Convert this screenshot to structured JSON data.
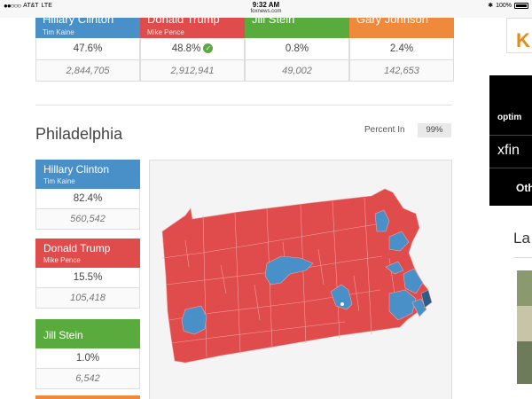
{
  "status_bar": {
    "carrier": "AT&T",
    "network": "LTE",
    "time": "9:32 AM",
    "url": "foxnews.com",
    "battery": "100%"
  },
  "top_row": [
    {
      "name": "Hillary Clinton",
      "vp": "Tim Kaine",
      "percent": "47.6%",
      "votes": "2,844,705",
      "color": "#4a90c8"
    },
    {
      "name": "Donald Trump",
      "vp": "Mike Pence",
      "percent": "48.8%",
      "votes": "2,912,941",
      "color": "#e04b4b",
      "winner": true
    },
    {
      "name": "Jill Stein",
      "vp": "",
      "percent": "0.8%",
      "votes": "49,002",
      "color": "#5aab3e"
    },
    {
      "name": "Gary Johnson",
      "vp": "",
      "percent": "2.4%",
      "votes": "142,653",
      "color": "#ef8a3c"
    }
  ],
  "section": {
    "title": "Philadelphia",
    "percent_in_label": "Percent In",
    "percent_in_value": "99%"
  },
  "candidates": [
    {
      "name": "Hillary Clinton",
      "vp": "Tim Kaine",
      "percent": "82.4%",
      "votes": "560,542",
      "color": "#4a90c8"
    },
    {
      "name": "Donald Trump",
      "vp": "Mike Pence",
      "percent": "15.5%",
      "votes": "105,418",
      "color": "#e04b4b"
    },
    {
      "name": "Jill Stein",
      "vp": "",
      "percent": "1.0%",
      "votes": "6,542",
      "color": "#5aab3e"
    }
  ],
  "map": {
    "colors": {
      "trump": "#e04b4b",
      "clinton": "#4a90c8",
      "selected": "#2a5f8a"
    }
  },
  "sidebar": {
    "ad_top_text": "K",
    "ad_optimum": "optim",
    "ad_xfinity": "xfin",
    "ad_other": "Oth",
    "heading": "La"
  }
}
